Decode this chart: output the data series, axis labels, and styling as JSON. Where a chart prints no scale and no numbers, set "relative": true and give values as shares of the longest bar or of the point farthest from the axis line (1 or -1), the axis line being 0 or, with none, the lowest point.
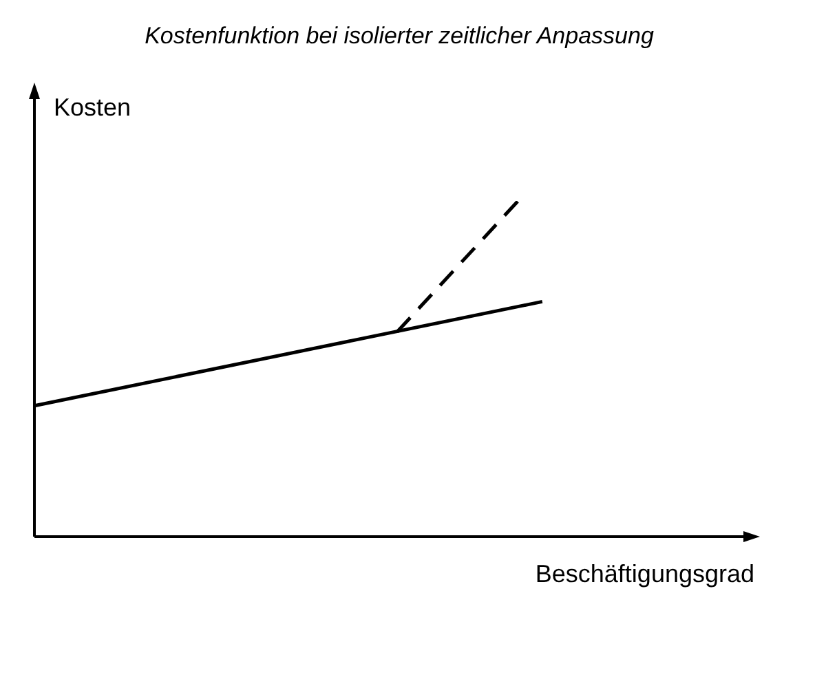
{
  "chart_data": {
    "type": "line",
    "title": "Kostenfunktion bei isolierter zeitlicher Anpassung",
    "xlabel": "Beschäftigungsgrad",
    "ylabel": "Kosten",
    "relative": true,
    "legend": false,
    "marker": "none",
    "categories": [
      null,
      null,
      null,
      null,
      null,
      null,
      null,
      null,
      null,
      null,
      null,
      null,
      null,
      null,
      null,
      null,
      null,
      null,
      null,
      null,
      null,
      null,
      null,
      null,
      null,
      null,
      null,
      null,
      null,
      null,
      null
    ],
    "series": [
      {
        "color": "#000000",
        "line_style": "solid",
        "values": [
          0.39,
          null,
          null,
          null,
          null,
          null,
          null,
          null,
          null,
          null,
          null,
          null,
          null,
          null,
          null,
          null,
          null,
          null,
          null,
          null,
          null,
          0.7,
          null,
          null,
          null,
          null,
          null,
          null,
          null,
          null,
          null
        ]
      },
      {
        "color": "#000000",
        "line_style": "dashed",
        "values": [
          null,
          null,
          null,
          null,
          null,
          null,
          null,
          null,
          null,
          null,
          null,
          null,
          null,
          null,
          null,
          0.61,
          null,
          null,
          null,
          null,
          1,
          null,
          null,
          null,
          null,
          null,
          null,
          null,
          null,
          null,
          null
        ]
      }
    ]
  }
}
